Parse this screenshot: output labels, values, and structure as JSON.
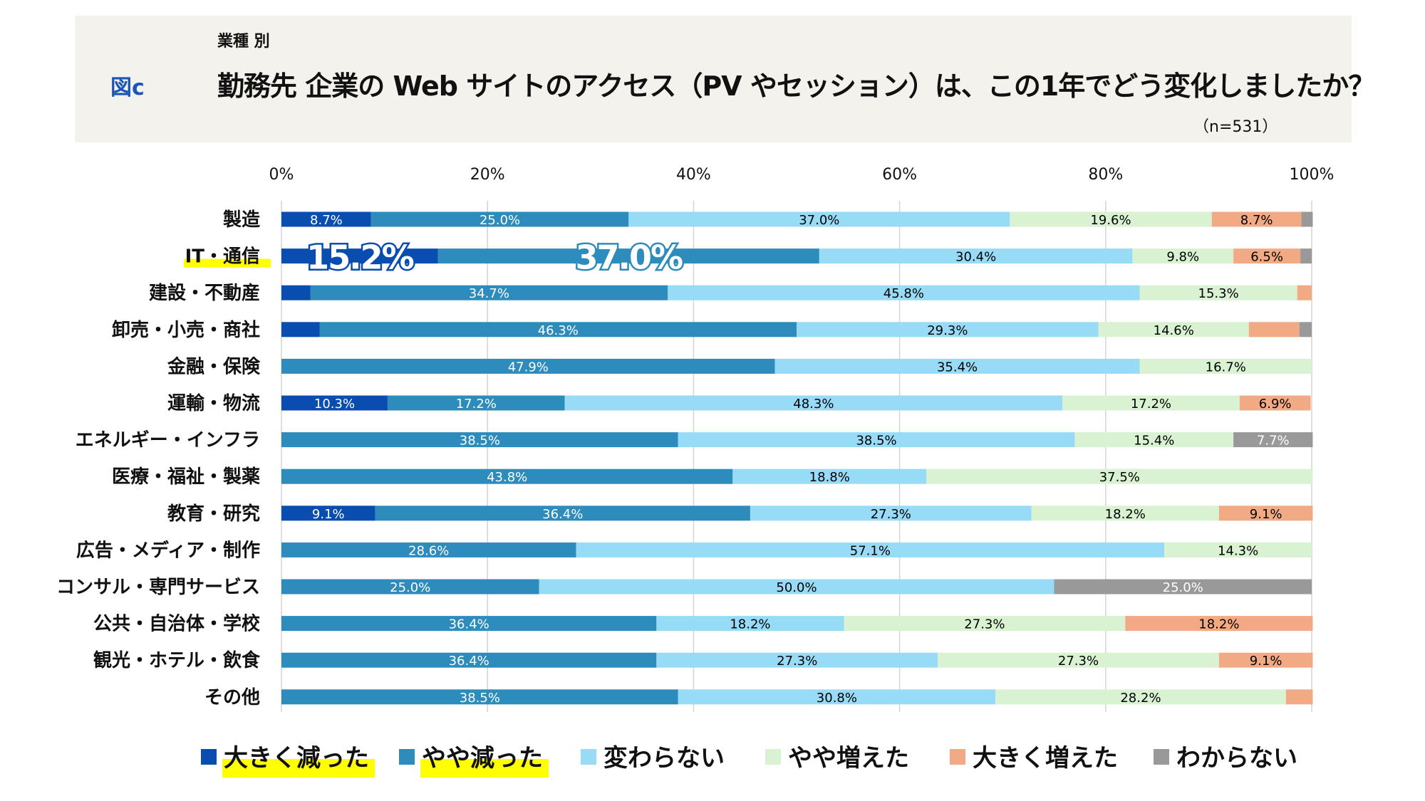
{
  "header": {
    "subtitle": "業種 別",
    "figure_label": "図c",
    "title": "勤務先 企業の Web サイトのアクセス（PV やセッション）は、この1年でどう変化しましたか？",
    "n_label": "（n=531）"
  },
  "chart_data": {
    "type": "bar",
    "orientation": "horizontal",
    "stacked": "percent",
    "title": "勤務先 企業の Web サイトのアクセス（PV やセッション）は、この1年でどう変化しましたか？",
    "xlim": [
      0,
      100
    ],
    "x_ticks": [
      "0%",
      "20%",
      "40%",
      "60%",
      "80%",
      "100%"
    ],
    "grid": true,
    "legend_position": "bottom",
    "legend": [
      {
        "name": "大きく減った",
        "color": "#0a4db0",
        "highlight": true
      },
      {
        "name": "やや減った",
        "color": "#2e8cbc",
        "highlight": true
      },
      {
        "name": "変わらない",
        "color": "#98dbf7",
        "highlight": false
      },
      {
        "name": "やや増えた",
        "color": "#d9f2d2",
        "highlight": false
      },
      {
        "name": "大きく増えた",
        "color": "#f2aa84",
        "highlight": false
      },
      {
        "name": "わからない",
        "color": "#999999",
        "highlight": false
      }
    ],
    "label_colors": [
      "#ffffff",
      "#ffffff",
      "#000000",
      "#000000",
      "#000000",
      "#ffffff"
    ],
    "rows": [
      {
        "category": "製造",
        "values": [
          8.7,
          25.0,
          37.0,
          19.6,
          8.7,
          1.1
        ],
        "labels": [
          "8.7%",
          "25.0%",
          "37.0%",
          "19.6%",
          "8.7%",
          ""
        ]
      },
      {
        "category": "IT・通信",
        "highlight": true,
        "values": [
          15.2,
          37.0,
          30.4,
          9.8,
          6.5,
          1.1
        ],
        "labels": [
          "",
          "",
          "30.4%",
          "9.8%",
          "6.5%",
          ""
        ],
        "callouts": [
          "15.2%",
          "37.0%"
        ]
      },
      {
        "category": "建設・不動産",
        "values": [
          2.8,
          34.7,
          45.8,
          15.3,
          1.4,
          0
        ],
        "labels": [
          "",
          "34.7%",
          "45.8%",
          "15.3%",
          "",
          ""
        ]
      },
      {
        "category": "卸売・小売・商社",
        "values": [
          3.7,
          46.3,
          29.3,
          14.6,
          4.9,
          1.2
        ],
        "labels": [
          "",
          "46.3%",
          "29.3%",
          "14.6%",
          "",
          ""
        ]
      },
      {
        "category": "金融・保険",
        "values": [
          0,
          47.9,
          35.4,
          16.7,
          0,
          0
        ],
        "labels": [
          "",
          "47.9%",
          "35.4%",
          "16.7%",
          "",
          ""
        ]
      },
      {
        "category": "運輸・物流",
        "values": [
          10.3,
          17.2,
          48.3,
          17.2,
          6.9,
          0
        ],
        "labels": [
          "10.3%",
          "17.2%",
          "48.3%",
          "17.2%",
          "6.9%",
          ""
        ]
      },
      {
        "category": "エネルギー・インフラ",
        "values": [
          0,
          38.5,
          38.5,
          15.4,
          0,
          7.7
        ],
        "labels": [
          "",
          "38.5%",
          "38.5%",
          "15.4%",
          "",
          "7.7%"
        ]
      },
      {
        "category": "医療・福祉・製薬",
        "values": [
          0,
          43.8,
          18.8,
          37.5,
          0,
          0
        ],
        "labels": [
          "",
          "43.8%",
          "18.8%",
          "37.5%",
          "",
          ""
        ]
      },
      {
        "category": "教育・研究",
        "values": [
          9.1,
          36.4,
          27.3,
          18.2,
          9.1,
          0
        ],
        "labels": [
          "9.1%",
          "36.4%",
          "27.3%",
          "18.2%",
          "9.1%",
          ""
        ]
      },
      {
        "category": "広告・メディア・制作",
        "values": [
          0,
          28.6,
          57.1,
          14.3,
          0,
          0
        ],
        "labels": [
          "",
          "28.6%",
          "57.1%",
          "14.3%",
          "",
          ""
        ]
      },
      {
        "category": "コンサル・専門サービス",
        "values": [
          0,
          25.0,
          50.0,
          0,
          0,
          25.0
        ],
        "labels": [
          "",
          "25.0%",
          "50.0%",
          "",
          "",
          "25.0%"
        ]
      },
      {
        "category": "公共・自治体・学校",
        "values": [
          0,
          36.4,
          18.2,
          27.3,
          18.2,
          0
        ],
        "labels": [
          "",
          "36.4%",
          "18.2%",
          "27.3%",
          "18.2%",
          ""
        ]
      },
      {
        "category": "観光・ホテル・飲食",
        "values": [
          0,
          36.4,
          27.3,
          27.3,
          9.1,
          0
        ],
        "labels": [
          "",
          "36.4%",
          "27.3%",
          "27.3%",
          "9.1%",
          ""
        ]
      },
      {
        "category": "その他",
        "values": [
          0,
          38.5,
          30.8,
          28.2,
          2.6,
          0
        ],
        "labels": [
          "",
          "38.5%",
          "30.8%",
          "28.2%",
          "",
          ""
        ]
      }
    ]
  }
}
